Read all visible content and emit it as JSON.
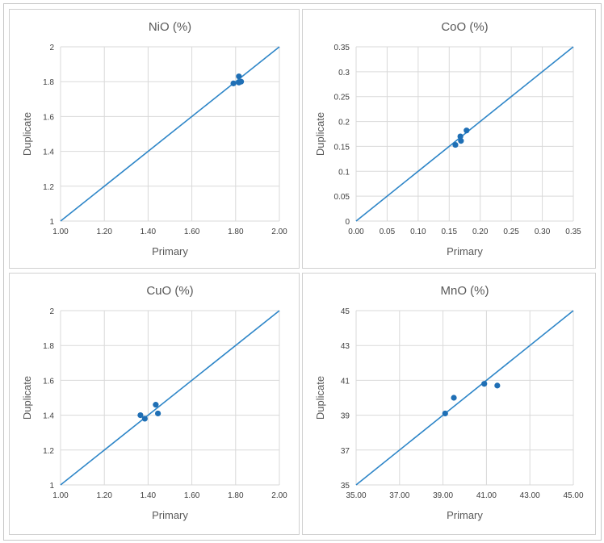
{
  "chart_data": [
    {
      "type": "scatter",
      "title": "NiO (%)",
      "xlabel": "Primary",
      "ylabel": "Duplicate",
      "xlim": [
        1.0,
        2.0
      ],
      "ylim": [
        1.0,
        2.0
      ],
      "x_ticks": [
        1.0,
        1.2,
        1.4,
        1.6,
        1.8,
        2.0
      ],
      "x_tick_labels": [
        "1.00",
        "1.20",
        "1.40",
        "1.60",
        "1.80",
        "2.00"
      ],
      "y_ticks": [
        1.0,
        1.2,
        1.4,
        1.6,
        1.8,
        2.0
      ],
      "y_tick_labels": [
        "1",
        "1.2",
        "1.4",
        "1.6",
        "1.8",
        "2"
      ],
      "reference_line": "y = x",
      "points": [
        {
          "x": 1.79,
          "y": 1.79
        },
        {
          "x": 1.815,
          "y": 1.83
        },
        {
          "x": 1.815,
          "y": 1.795
        },
        {
          "x": 1.825,
          "y": 1.8
        }
      ]
    },
    {
      "type": "scatter",
      "title": "CoO (%)",
      "xlabel": "Primary",
      "ylabel": "Duplicate",
      "xlim": [
        0,
        0.35
      ],
      "ylim": [
        0,
        0.35
      ],
      "x_ticks": [
        0,
        0.05,
        0.1,
        0.15,
        0.2,
        0.25,
        0.3,
        0.35
      ],
      "x_tick_labels": [
        "0.00",
        "0.05",
        "0.10",
        "0.15",
        "0.20",
        "0.25",
        "0.30",
        "0.35"
      ],
      "y_ticks": [
        0,
        0.05,
        0.1,
        0.15,
        0.2,
        0.25,
        0.3,
        0.35
      ],
      "y_tick_labels": [
        "0",
        "0.05",
        "0.1",
        "0.15",
        "0.2",
        "0.25",
        "0.3",
        "0.35"
      ],
      "reference_line": "y = x",
      "points": [
        {
          "x": 0.16,
          "y": 0.153
        },
        {
          "x": 0.168,
          "y": 0.17
        },
        {
          "x": 0.169,
          "y": 0.161
        },
        {
          "x": 0.178,
          "y": 0.182
        }
      ]
    },
    {
      "type": "scatter",
      "title": "CuO (%)",
      "xlabel": "Primary",
      "ylabel": "Duplicate",
      "xlim": [
        1.0,
        2.0
      ],
      "ylim": [
        1.0,
        2.0
      ],
      "x_ticks": [
        1.0,
        1.2,
        1.4,
        1.6,
        1.8,
        2.0
      ],
      "x_tick_labels": [
        "1.00",
        "1.20",
        "1.40",
        "1.60",
        "1.80",
        "2.00"
      ],
      "y_ticks": [
        1.0,
        1.2,
        1.4,
        1.6,
        1.8,
        2.0
      ],
      "y_tick_labels": [
        "1",
        "1.2",
        "1.4",
        "1.6",
        "1.8",
        "2"
      ],
      "reference_line": "y = x",
      "points": [
        {
          "x": 1.365,
          "y": 1.4
        },
        {
          "x": 1.385,
          "y": 1.38
        },
        {
          "x": 1.435,
          "y": 1.46
        },
        {
          "x": 1.445,
          "y": 1.41
        }
      ]
    },
    {
      "type": "scatter",
      "title": "MnO (%)",
      "xlabel": "Primary",
      "ylabel": "Duplicate",
      "xlim": [
        35,
        45
      ],
      "ylim": [
        35,
        45
      ],
      "x_ticks": [
        35,
        37,
        39,
        41,
        43,
        45
      ],
      "x_tick_labels": [
        "35.00",
        "37.00",
        "39.00",
        "41.00",
        "43.00",
        "45.00"
      ],
      "y_ticks": [
        35,
        37,
        39,
        41,
        43,
        45
      ],
      "y_tick_labels": [
        "35",
        "37",
        "39",
        "41",
        "43",
        "45"
      ],
      "reference_line": "y = x",
      "points": [
        {
          "x": 39.1,
          "y": 39.1
        },
        {
          "x": 39.5,
          "y": 40.0
        },
        {
          "x": 40.9,
          "y": 40.8
        },
        {
          "x": 41.5,
          "y": 40.7
        }
      ]
    }
  ],
  "colors": {
    "series": "#1f6fb5",
    "line": "#2e86c8",
    "grid": "#d9d9d9",
    "text": "#595959"
  }
}
